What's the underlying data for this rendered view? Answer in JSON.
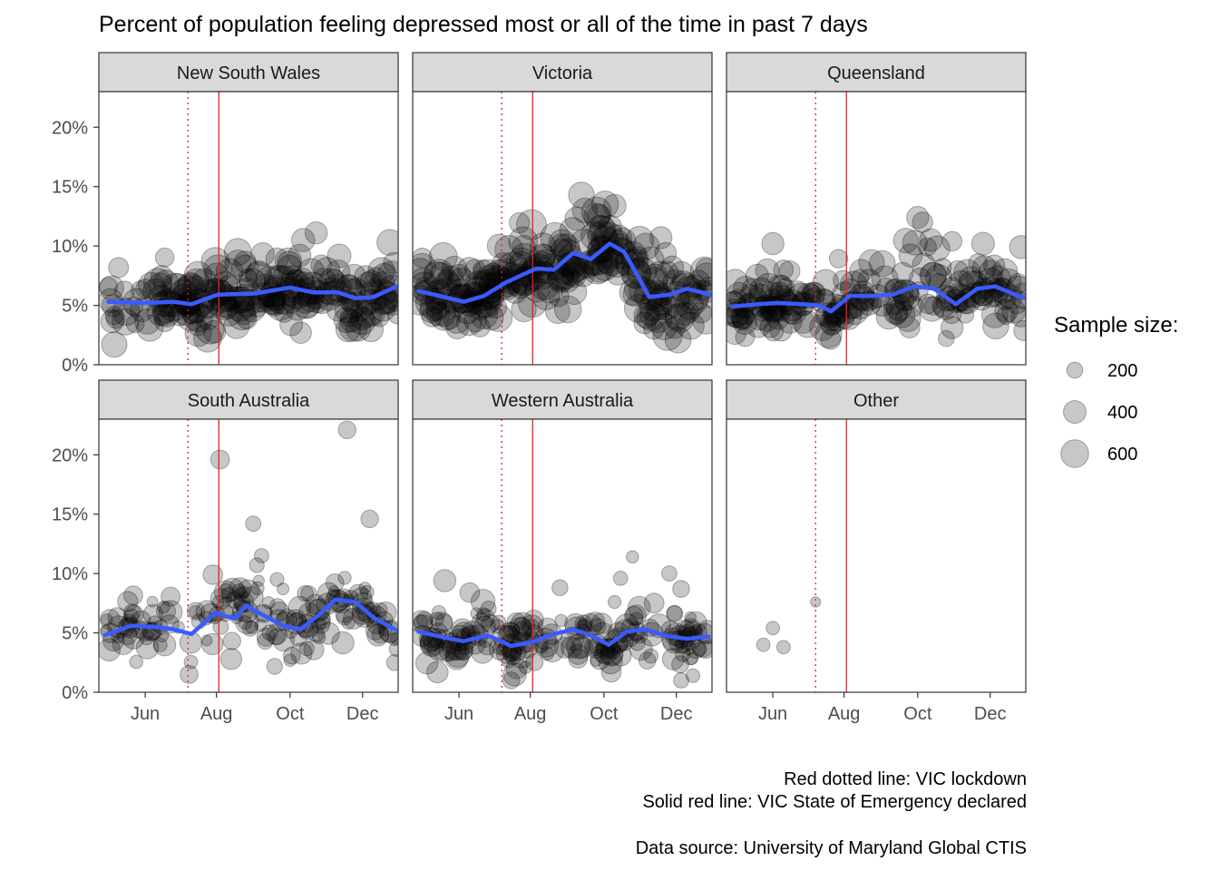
{
  "title": "Percent of population feeling depressed most or all of the time in past 7 days",
  "caption": {
    "line1": "Red dotted line: VIC lockdown",
    "line2": "Solid red line: VIC State of Emergency declared",
    "line3": "Data source: University of Maryland Global CTIS"
  },
  "legend": {
    "title": "Sample size:",
    "items": [
      {
        "label": "200",
        "size": 200
      },
      {
        "label": "400",
        "size": 400
      },
      {
        "label": "600",
        "size": 600
      }
    ]
  },
  "colors": {
    "point": "#000000",
    "smooth": "#3a5bff",
    "event_line": "#e8202a",
    "strip_fill": "#d9d9d9",
    "panel_border": "#333333"
  },
  "chart_data": {
    "type": "scatter",
    "x_axis": {
      "range": [
        "2020-04-23",
        "2020-12-31"
      ],
      "tick_labels": [
        "Jun",
        "Aug",
        "Oct",
        "Dec"
      ],
      "tick_dates": [
        "2020-06-01",
        "2020-07-31",
        "2020-10-01",
        "2020-12-01"
      ]
    },
    "y_axis": {
      "range": [
        0,
        23
      ],
      "unit": "%",
      "tick_labels": [
        "0%",
        "5%",
        "10%",
        "15%",
        "20%"
      ],
      "tick_values": [
        0,
        5,
        10,
        15,
        20
      ]
    },
    "facets": {
      "rows": 2,
      "cols": 3,
      "shared_axes": true
    },
    "vlines": [
      {
        "date": "2020-07-07",
        "style": "dotted",
        "meaning": "VIC lockdown"
      },
      {
        "date": "2020-08-02",
        "style": "solid",
        "meaning": "VIC State of Emergency declared"
      }
    ],
    "panels": [
      {
        "name": "New South Wales",
        "n": 220,
        "size_min": 250,
        "size_max": 650,
        "noise_sd": 1.3,
        "smooth": [
          [
            "2020-05-01",
            5.3
          ],
          [
            "2020-06-01",
            5.2
          ],
          [
            "2020-06-25",
            5.3
          ],
          [
            "2020-07-10",
            5.1
          ],
          [
            "2020-08-01",
            5.9
          ],
          [
            "2020-09-01",
            6.0
          ],
          [
            "2020-10-01",
            6.5
          ],
          [
            "2020-10-20",
            6.1
          ],
          [
            "2020-11-10",
            6.1
          ],
          [
            "2020-11-25",
            5.6
          ],
          [
            "2020-12-10",
            5.7
          ],
          [
            "2020-12-30",
            6.6
          ]
        ],
        "outliers": [
          [
            "2020-07-30",
            8.7,
            600
          ],
          [
            "2020-08-18",
            9.5,
            560
          ],
          [
            "2020-09-08",
            9.3,
            420
          ],
          [
            "2020-10-09",
            9.2,
            400
          ],
          [
            "2020-10-23",
            11.1,
            380
          ],
          [
            "2020-10-12",
            10.5,
            420
          ],
          [
            "2020-12-24",
            10.3,
            520
          ],
          [
            "2020-09-20",
            8.9,
            380
          ],
          [
            "2020-10-02",
            3.4,
            400
          ],
          [
            "2020-10-10",
            2.7,
            360
          ]
        ]
      },
      {
        "name": "Victoria",
        "n": 250,
        "size_min": 300,
        "size_max": 700,
        "noise_sd": 1.4,
        "smooth": [
          [
            "2020-04-28",
            6.2
          ],
          [
            "2020-05-20",
            5.7
          ],
          [
            "2020-06-05",
            5.3
          ],
          [
            "2020-06-22",
            5.8
          ],
          [
            "2020-07-10",
            6.9
          ],
          [
            "2020-07-25",
            7.6
          ],
          [
            "2020-08-05",
            8.1
          ],
          [
            "2020-08-20",
            8.0
          ],
          [
            "2020-09-05",
            9.4
          ],
          [
            "2020-09-20",
            8.9
          ],
          [
            "2020-10-06",
            10.2
          ],
          [
            "2020-10-18",
            9.5
          ],
          [
            "2020-10-30",
            7.4
          ],
          [
            "2020-11-08",
            5.7
          ],
          [
            "2020-11-25",
            5.9
          ],
          [
            "2020-12-10",
            6.4
          ],
          [
            "2020-12-30",
            5.9
          ]
        ],
        "outliers": [
          [
            "2020-07-25",
            10.4,
            640
          ],
          [
            "2020-08-01",
            11.8,
            700
          ],
          [
            "2020-09-12",
            14.3,
            520
          ],
          [
            "2020-10-02",
            13.5,
            560
          ],
          [
            "2020-09-08",
            12.3,
            420
          ],
          [
            "2020-09-25",
            12.5,
            520
          ],
          [
            "2020-10-15",
            10.1,
            380
          ],
          [
            "2020-11-18",
            10.7,
            380
          ],
          [
            "2020-11-22",
            9.4,
            360
          ],
          [
            "2020-12-26",
            8.1,
            320
          ],
          [
            "2020-05-01",
            9.0,
            300
          ],
          [
            "2020-11-12",
            3.0,
            320
          ]
        ]
      },
      {
        "name": "Queensland",
        "n": 210,
        "size_min": 220,
        "size_max": 560,
        "noise_sd": 1.3,
        "smooth": [
          [
            "2020-04-28",
            4.9
          ],
          [
            "2020-05-20",
            5.1
          ],
          [
            "2020-06-05",
            5.2
          ],
          [
            "2020-06-25",
            5.1
          ],
          [
            "2020-07-10",
            5.0
          ],
          [
            "2020-07-20",
            4.5
          ],
          [
            "2020-08-05",
            5.8
          ],
          [
            "2020-08-25",
            5.8
          ],
          [
            "2020-09-10",
            5.9
          ],
          [
            "2020-09-28",
            6.6
          ],
          [
            "2020-10-15",
            6.4
          ],
          [
            "2020-11-02",
            5.1
          ],
          [
            "2020-11-20",
            6.4
          ],
          [
            "2020-12-05",
            6.6
          ],
          [
            "2020-12-30",
            5.6
          ]
        ],
        "outliers": [
          [
            "2020-06-01",
            10.2,
            380
          ],
          [
            "2020-06-10",
            8.0,
            300
          ],
          [
            "2020-09-25",
            9.2,
            420
          ],
          [
            "2020-10-01",
            12.4,
            380
          ],
          [
            "2020-10-05",
            12.0,
            320
          ],
          [
            "2020-10-12",
            10.5,
            400
          ],
          [
            "2020-10-30",
            10.4,
            300
          ],
          [
            "2020-11-25",
            10.2,
            400
          ],
          [
            "2020-12-27",
            9.9,
            420
          ],
          [
            "2020-10-25",
            2.2,
            200
          ],
          [
            "2020-07-20",
            3.3,
            300
          ]
        ]
      },
      {
        "name": "South Australia",
        "n": 170,
        "size_min": 90,
        "size_max": 420,
        "noise_sd": 1.3,
        "smooth": [
          [
            "2020-04-28",
            4.8
          ],
          [
            "2020-05-20",
            5.6
          ],
          [
            "2020-06-10",
            5.5
          ],
          [
            "2020-06-25",
            5.3
          ],
          [
            "2020-07-10",
            4.9
          ],
          [
            "2020-07-30",
            6.7
          ],
          [
            "2020-08-15",
            6.2
          ],
          [
            "2020-08-25",
            7.3
          ],
          [
            "2020-09-10",
            6.4
          ],
          [
            "2020-09-25",
            5.6
          ],
          [
            "2020-10-10",
            5.3
          ],
          [
            "2020-10-25",
            6.5
          ],
          [
            "2020-11-08",
            7.8
          ],
          [
            "2020-11-25",
            7.6
          ],
          [
            "2020-12-10",
            6.3
          ],
          [
            "2020-12-30",
            5.2
          ]
        ],
        "outliers": [
          [
            "2020-08-03",
            19.6,
            280
          ],
          [
            "2020-11-18",
            22.1,
            240
          ],
          [
            "2020-12-07",
            14.6,
            240
          ],
          [
            "2020-08-31",
            14.2,
            180
          ],
          [
            "2020-07-28",
            9.9,
            300
          ],
          [
            "2020-09-07",
            11.5,
            160
          ],
          [
            "2020-09-03",
            10.7,
            170
          ],
          [
            "2020-09-20",
            9.5,
            150
          ],
          [
            "2020-09-25",
            8.7,
            110
          ],
          [
            "2020-07-08",
            1.5,
            250
          ],
          [
            "2020-10-01",
            2.7,
            120
          ],
          [
            "2020-12-28",
            2.5,
            200
          ]
        ]
      },
      {
        "name": "Western Australia",
        "n": 190,
        "size_min": 90,
        "size_max": 460,
        "noise_sd": 1.2,
        "smooth": [
          [
            "2020-04-28",
            5.1
          ],
          [
            "2020-05-20",
            4.6
          ],
          [
            "2020-06-05",
            4.3
          ],
          [
            "2020-06-25",
            4.8
          ],
          [
            "2020-07-15",
            3.9
          ],
          [
            "2020-08-01",
            4.2
          ],
          [
            "2020-08-20",
            4.9
          ],
          [
            "2020-09-05",
            5.3
          ],
          [
            "2020-09-20",
            4.8
          ],
          [
            "2020-10-05",
            4.0
          ],
          [
            "2020-10-20",
            5.1
          ],
          [
            "2020-11-05",
            5.3
          ],
          [
            "2020-11-20",
            4.8
          ],
          [
            "2020-12-10",
            4.5
          ],
          [
            "2020-12-28",
            4.7
          ]
        ],
        "outliers": [
          [
            "2020-05-20",
            9.4,
            380
          ],
          [
            "2020-06-10",
            8.4,
            300
          ],
          [
            "2020-08-25",
            8.8,
            200
          ],
          [
            "2020-10-25",
            11.4,
            120
          ],
          [
            "2020-10-15",
            9.6,
            160
          ],
          [
            "2020-11-25",
            10.0,
            180
          ],
          [
            "2020-12-05",
            8.7,
            220
          ],
          [
            "2020-10-10",
            7.6,
            130
          ],
          [
            "2020-07-15",
            1.0,
            220
          ],
          [
            "2020-12-05",
            1.0,
            180
          ],
          [
            "2020-12-15",
            1.4,
            150
          ]
        ]
      },
      {
        "name": "Other",
        "n": 0,
        "size_min": 100,
        "size_max": 100,
        "noise_sd": 0,
        "smooth": [],
        "outliers": [
          [
            "2020-05-24",
            4.0,
            140
          ],
          [
            "2020-06-01",
            5.4,
            140
          ],
          [
            "2020-06-10",
            3.8,
            140
          ],
          [
            "2020-07-07",
            7.6,
            80
          ]
        ]
      }
    ]
  }
}
